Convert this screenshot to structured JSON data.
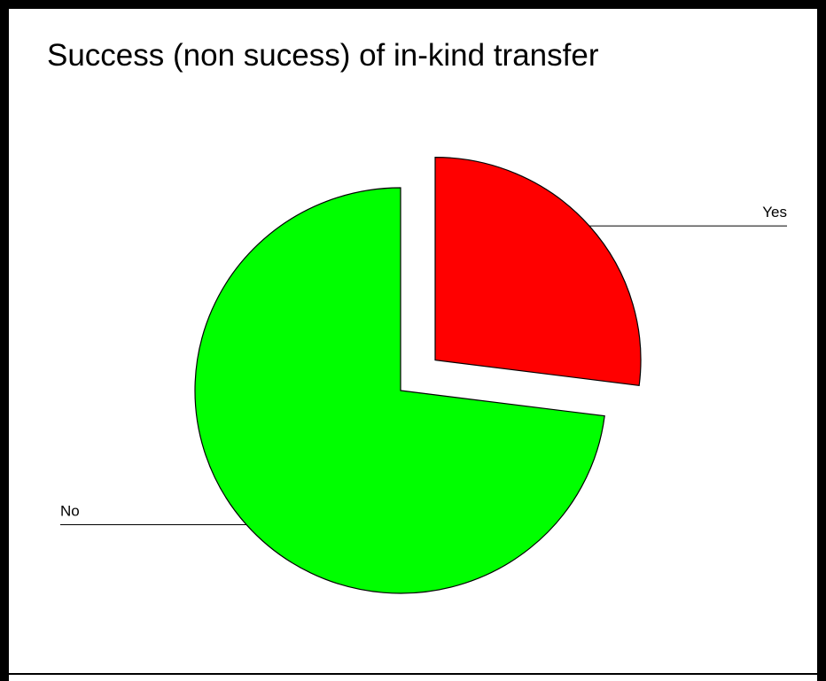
{
  "chart_data": {
    "type": "pie",
    "title": "Success (non sucess) of in-kind transfer",
    "slices": [
      {
        "label": "Yes",
        "value": 27,
        "color": "#ff0000",
        "exploded": true
      },
      {
        "label": "No",
        "value": 73,
        "color": "#00ff00",
        "exploded": false
      }
    ],
    "legend": "none",
    "start_angle": "12 o'clock",
    "direction": "clockwise"
  }
}
